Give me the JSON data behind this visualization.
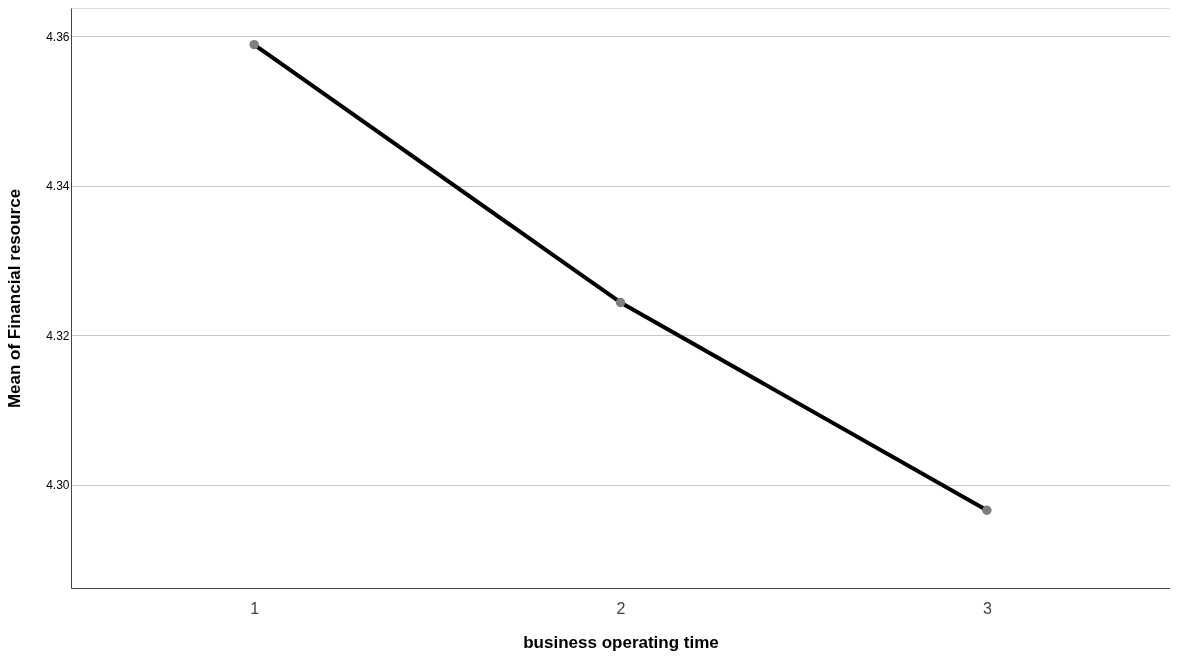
{
  "chart_data": {
    "type": "line",
    "xlabel": "business operating time",
    "ylabel": "Mean of Financial resource",
    "categories": [
      "1",
      "2",
      "3"
    ],
    "series": [
      {
        "color": "#000000",
        "values": [
          4.3589,
          4.3244,
          4.2966
        ]
      }
    ],
    "ylim": [
      4.2862,
      4.3638
    ],
    "yticks": [
      {
        "value": 4.3,
        "label": "4.30"
      },
      {
        "value": 4.32,
        "label": "4.32"
      },
      {
        "value": 4.34,
        "label": "4.34"
      },
      {
        "value": 4.36,
        "label": "4.36"
      }
    ],
    "grid": "y",
    "marker": "circle",
    "line_style": "solid"
  }
}
